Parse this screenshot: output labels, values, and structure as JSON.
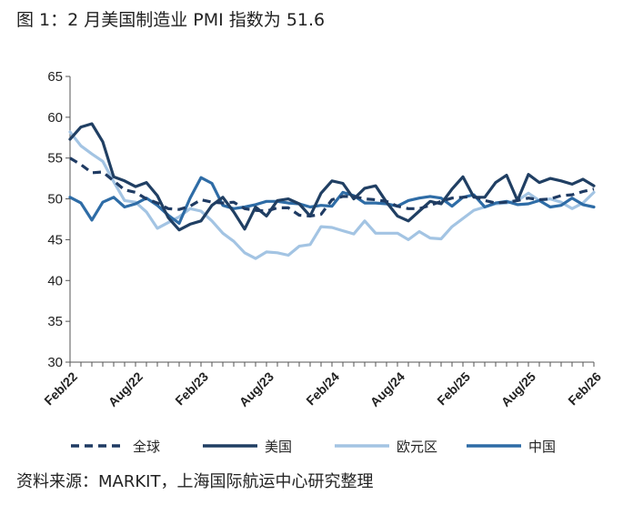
{
  "title": "图 1：2 月美国制造业 PMI 指数为 51.6",
  "source": "资料来源：MARKIT，上海国际航运中心研究整理",
  "chart_data": {
    "type": "line",
    "ylim": [
      30,
      65
    ],
    "yticks": [
      30,
      35,
      40,
      45,
      50,
      55,
      60,
      65
    ],
    "x": [
      "2022-02",
      "2022-03",
      "2022-04",
      "2022-05",
      "2022-06",
      "2022-07",
      "2022-08",
      "2022-09",
      "2022-10",
      "2022-11",
      "2022-12",
      "2023-01",
      "2023-02",
      "2023-03",
      "2023-04",
      "2023-05",
      "2023-06",
      "2023-07",
      "2023-08",
      "2023-09",
      "2023-10",
      "2023-11",
      "2023-12",
      "2024-01",
      "2024-02",
      "2024-03",
      "2024-04",
      "2024-05",
      "2024-06",
      "2024-07",
      "2024-08",
      "2024-09",
      "2024-10",
      "2024-11",
      "2024-12",
      "2025-01",
      "2025-02",
      "2025-03",
      "2025-04",
      "2025-05",
      "2025-06",
      "2025-07",
      "2025-08",
      "2025-09",
      "2025-10",
      "2025-11",
      "2025-12",
      "2026-01",
      "2026-02"
    ],
    "xtick_labels": [
      "Feb/22",
      "Aug/22",
      "Feb/23",
      "Aug/23",
      "Feb/24",
      "Aug/24",
      "Feb/25",
      "Aug/25",
      "Feb/26"
    ],
    "xtick_index": [
      0,
      6,
      12,
      18,
      24,
      30,
      36,
      42,
      48
    ],
    "grid": false,
    "legend_position": "bottom",
    "series": [
      {
        "name": "全球",
        "color": "#1f3b63",
        "dash": true,
        "values": [
          55.0,
          54.2,
          53.2,
          53.3,
          52.2,
          51.1,
          50.8,
          50.0,
          49.5,
          48.8,
          48.7,
          49.1,
          49.9,
          49.6,
          49.5,
          49.6,
          48.8,
          48.6,
          48.5,
          48.9,
          48.9,
          48.0,
          47.9,
          48.1,
          49.9,
          50.3,
          50.3,
          50.0,
          49.9,
          49.7,
          49.1,
          48.8,
          48.8,
          49.2,
          49.7,
          50.1,
          50.2,
          50.3,
          49.8,
          49.5,
          49.6,
          49.8,
          50.1,
          49.9,
          50.0,
          50.4,
          50.5,
          50.9,
          51.2
        ]
      },
      {
        "name": "美国",
        "color": "#203f63",
        "dash": false,
        "values": [
          57.3,
          58.8,
          59.2,
          57.0,
          52.7,
          52.2,
          51.5,
          52.0,
          50.4,
          47.7,
          46.2,
          46.9,
          47.3,
          49.2,
          50.2,
          48.4,
          46.3,
          49.0,
          47.9,
          49.8,
          50.0,
          49.4,
          47.9,
          50.7,
          52.2,
          51.9,
          50.0,
          51.3,
          51.6,
          49.6,
          47.9,
          47.3,
          48.5,
          49.7,
          49.4,
          51.2,
          52.7,
          50.2,
          50.2,
          52.0,
          52.9,
          49.8,
          53.0,
          52.0,
          52.5,
          52.2,
          51.8,
          52.4,
          51.6
        ]
      },
      {
        "name": "欧元区",
        "color": "#a3c4e3",
        "dash": false,
        "values": [
          58.2,
          56.5,
          55.5,
          54.6,
          52.1,
          49.8,
          49.6,
          48.4,
          46.4,
          47.1,
          47.8,
          48.8,
          48.5,
          47.3,
          45.8,
          44.8,
          43.4,
          42.7,
          43.5,
          43.4,
          43.1,
          44.2,
          44.4,
          46.6,
          46.5,
          46.1,
          45.7,
          47.3,
          45.8,
          45.8,
          45.8,
          45.0,
          46.0,
          45.2,
          45.1,
          46.6,
          47.6,
          48.6,
          49.0,
          49.4,
          49.5,
          49.8,
          50.7,
          49.8,
          50.0,
          49.6,
          48.8,
          49.5,
          50.8
        ]
      },
      {
        "name": "中国",
        "color": "#2e6ca6",
        "dash": false,
        "values": [
          50.2,
          49.5,
          47.4,
          49.6,
          50.2,
          49.0,
          49.4,
          50.1,
          49.2,
          48.0,
          47.0,
          50.1,
          52.6,
          51.9,
          49.2,
          48.8,
          49.0,
          49.3,
          49.7,
          49.7,
          49.5,
          49.4,
          49.0,
          49.2,
          49.1,
          50.8,
          50.4,
          49.5,
          49.5,
          49.4,
          49.1,
          49.8,
          50.1,
          50.3,
          50.1,
          49.1,
          50.2,
          50.5,
          49.0,
          49.5,
          49.7,
          49.3,
          49.4,
          49.8,
          49.0,
          49.2,
          50.1,
          49.3,
          49.0
        ]
      }
    ]
  }
}
